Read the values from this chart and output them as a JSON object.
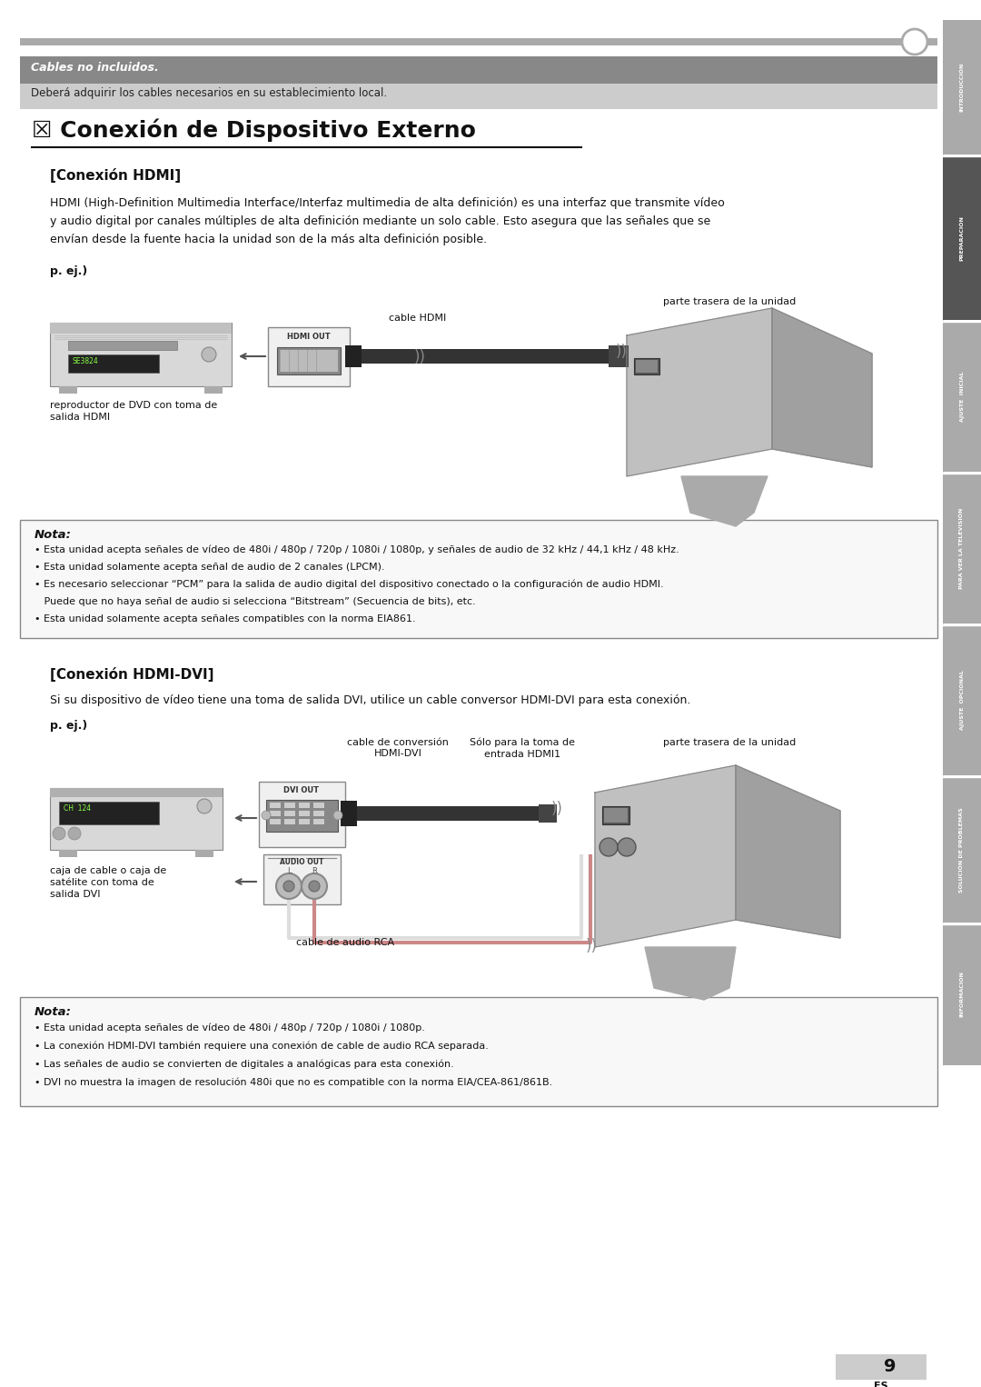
{
  "bg_color": "#ffffff",
  "page_width": 10.8,
  "page_height": 15.26,
  "sidebar_tabs": [
    {
      "label": "INTRODUCCIÓN"
    },
    {
      "label": "PREPARACIÓN"
    },
    {
      "label": "AJUSTE  INICIAL"
    },
    {
      "label": "PARA VER LA TELEVISIÓN"
    },
    {
      "label": "AJUSTE  OPCIONAL"
    },
    {
      "label": "SOLUCIÓN DE PROBLEMAS"
    },
    {
      "label": "INFORMACIÓN"
    }
  ],
  "cables_title": "Cables no incluidos.",
  "cables_subtitle": "Deberá adquirir los cables necesarios en su establecimiento local.",
  "section_title": "☒ Conexión de Dispositivo Externo",
  "hdmi_section_title": "[Conexión HDMI]",
  "hdmi_body_lines": [
    "HDMI (High-Definition Multimedia Interface/Interfaz multimedia de alta definición) es una interfaz que transmite vídeo",
    "y audio digital por canales múltiples de alta definición mediante un solo cable. Esto asegura que las señales que se",
    "envían desde la fuente hacia la unidad son de la más alta definición posible."
  ],
  "hdmi_diagram_labels": {
    "parte_trasera": "parte trasera de la unidad",
    "cable_hdmi": "cable HDMI",
    "reproductor": "reproductor de DVD con toma de\nsalida HDMI",
    "hdmi_out": "HDMI OUT"
  },
  "nota1_title": "Nota:",
  "nota1_bullets": [
    "• Esta unidad acepta señales de vídeo de 480i / 480p / 720p / 1080i / 1080p, y señales de audio de 32 kHz / 44,1 kHz / 48 kHz.",
    "• Esta unidad solamente acepta señal de audio de 2 canales (LPCM).",
    "• Es necesario seleccionar “PCM” para la salida de audio digital del dispositivo conectado o la configuración de audio HDMI.",
    "   Puede que no haya señal de audio si selecciona “Bitstream” (Secuencia de bits), etc.",
    "• Esta unidad solamente acepta señales compatibles con la norma EIA861."
  ],
  "hdmi_dvi_section_title": "[Conexión HDMI-DVI]",
  "hdmi_dvi_body": "Si su dispositivo de vídeo tiene una toma de salida DVI, utilice un cable conversor HDMI-DVI para esta conexión.",
  "hdmi_dvi_diagram_labels": {
    "parte_trasera": "parte trasera de la unidad",
    "solo_para": "Sólo para la toma de\nentrada HDMI1",
    "cable_conversion": "cable de conversión\nHDMI-DVI",
    "cable_audio": "cable de audio RCA",
    "caja_cable": "caja de cable o caja de\nsatélite con toma de\nsalida DVI",
    "dvi_out": "DVI OUT",
    "audio_out": "AUDIO OUT",
    "audio_l": "L",
    "audio_r": "R"
  },
  "nota2_title": "Nota:",
  "nota2_bullets": [
    "• Esta unidad acepta señales de vídeo de 480i / 480p / 720p / 1080i / 1080p.",
    "• La conexión HDMI-DVI también requiere una conexión de cable de audio RCA separada.",
    "• Las señales de audio se convierten de digitales a analógicas para esta conexión.",
    "• DVI no muestra la imagen de resolución 480i que no es compatible con la norma EIA/CEA-861/861B."
  ],
  "page_number": "9",
  "page_lang": "ES"
}
